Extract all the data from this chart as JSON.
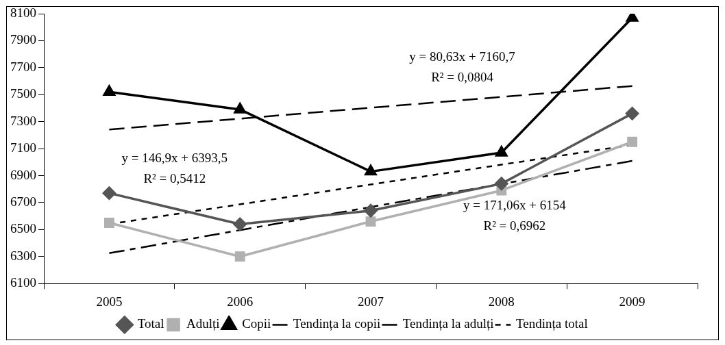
{
  "chart_data": {
    "type": "line",
    "categories": [
      "2005",
      "2006",
      "2007",
      "2008",
      "2009"
    ],
    "series": [
      {
        "name": "Total",
        "color": "#555555",
        "marker": "diamond",
        "line_style": "solid",
        "values": [
          6770,
          6540,
          6640,
          6840,
          7360
        ]
      },
      {
        "name": "Adulți",
        "color": "#b0b0b0",
        "marker": "square",
        "line_style": "solid",
        "values": [
          6550,
          6300,
          6560,
          6790,
          7150
        ]
      },
      {
        "name": "Copii",
        "color": "#000000",
        "marker": "triangle",
        "line_style": "solid",
        "values": [
          7520,
          7390,
          6930,
          7070,
          8070
        ]
      },
      {
        "name": "Tendința la copii",
        "color": "#000000",
        "marker": "none",
        "line_style": "dashed",
        "values": [
          7241,
          7322,
          7403,
          7483,
          7564
        ]
      },
      {
        "name": "Tendința la adulți",
        "color": "#000000",
        "marker": "none",
        "line_style": "dashdot",
        "values": [
          6325,
          6496,
          6667,
          6838,
          7009
        ]
      },
      {
        "name": "Tendința total",
        "color": "#000000",
        "marker": "none",
        "line_style": "dotted",
        "values": [
          6540,
          6687,
          6834,
          6981,
          7128
        ]
      }
    ],
    "ylim": [
      6100,
      8100
    ],
    "yticks": [
      6100,
      6300,
      6500,
      6700,
      6900,
      7100,
      7300,
      7500,
      7700,
      7900,
      8100
    ],
    "grid": false,
    "legend": "bottom",
    "annotations": [
      "y = 80,63x + 7160,7\nR² = 0,0804",
      "y = 146,9x + 6393,5\nR² = 0,5412",
      "y = 171,06x + 6154\nR² = 0,6962"
    ]
  }
}
